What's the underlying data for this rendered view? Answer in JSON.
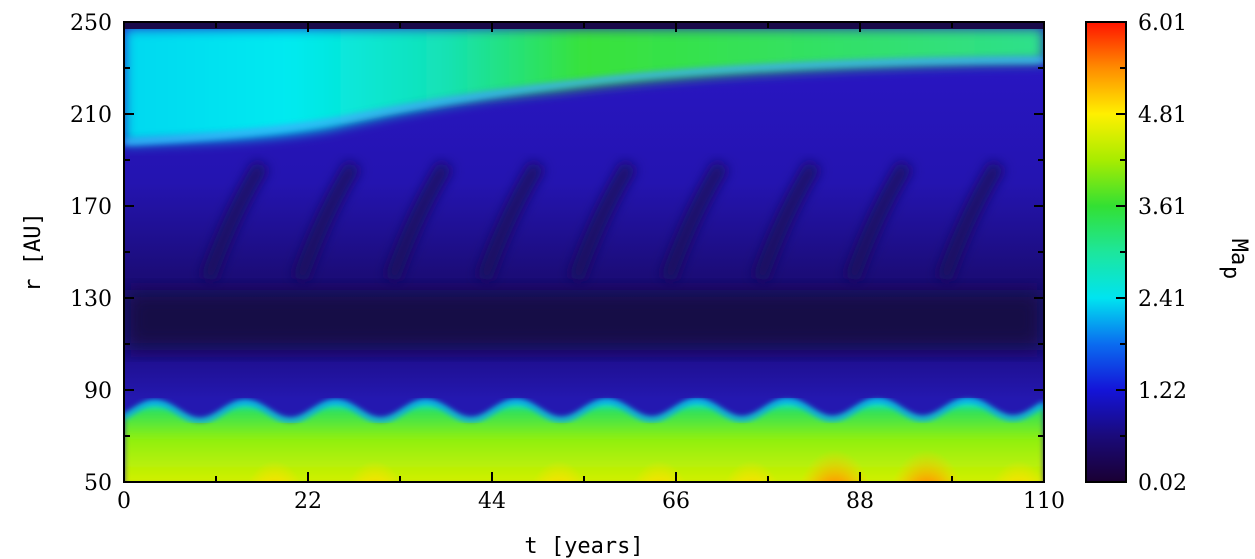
{
  "chart_data": {
    "type": "heatmap",
    "title": "",
    "xlabel": "t [years]",
    "ylabel": "r [AU]",
    "xlim": [
      0,
      110
    ],
    "ylim": [
      50,
      250
    ],
    "xticks": [
      "0",
      "22",
      "44",
      "66",
      "88",
      "110"
    ],
    "yticks": [
      "50",
      "90",
      "130",
      "170",
      "210",
      "250"
    ],
    "colorbar": {
      "label": "Ma",
      "label_subscript": "p",
      "ticks": [
        "0.02",
        "1.22",
        "2.41",
        "3.61",
        "4.81",
        "6.01"
      ],
      "range": [
        0.02,
        6.01
      ],
      "colormap": "jet"
    },
    "regions": [
      {
        "feature": "outer fast wind, cyan at early times turning green later",
        "r_range": [
          200,
          248
        ],
        "Ma": [
          2.4,
          4.0
        ]
      },
      {
        "feature": "slow arcs / shocks travelling outward",
        "r_range": [
          130,
          200
        ],
        "Ma": [
          0.05,
          0.8
        ]
      },
      {
        "feature": "dark low-Mach band",
        "r_range": [
          118,
          135
        ],
        "Ma": [
          0.02,
          0.2
        ]
      },
      {
        "feature": "wavy jet front, oscillating with time",
        "r_range": [
          72,
          92
        ],
        "Ma": [
          1.5,
          3.0
        ]
      },
      {
        "feature": "inner supersonic flow, peaks near t = 85 and t = 95",
        "r_range": [
          50,
          80
        ],
        "Ma": [
          3.0,
          6.0
        ]
      }
    ]
  }
}
